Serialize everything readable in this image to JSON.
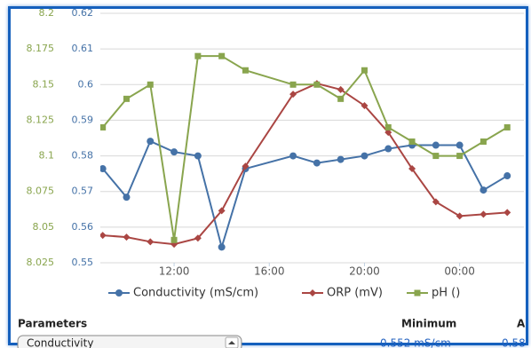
{
  "chart_data": {
    "type": "line",
    "xlim": [
      8.9,
      26.7
    ],
    "xticks": [
      {
        "value": 12,
        "label": "12:00"
      },
      {
        "value": 16,
        "label": "16:00"
      },
      {
        "value": 20,
        "label": "20:00"
      },
      {
        "value": 24,
        "label": "00:00"
      }
    ],
    "ylim": [
      0.55,
      0.62
    ],
    "yticks": [
      0.55,
      0.56,
      0.57,
      0.58,
      0.59,
      0.6,
      0.61,
      0.62
    ],
    "y2lim": [
      8.025,
      8.2
    ],
    "y2ticks": [
      8.025,
      8.05,
      8.075,
      8.1,
      8.125,
      8.15,
      8.175,
      8.2
    ],
    "grid": true,
    "series": [
      {
        "name": "Conductivity (mS/cm)",
        "color": "#4572a7",
        "marker": "circle",
        "x": [
          9,
          10,
          11,
          12,
          13,
          14,
          15,
          17,
          18,
          19,
          20,
          21,
          22,
          23,
          24,
          25,
          26
        ],
        "values": [
          0.5764,
          0.5684,
          0.5841,
          0.5811,
          0.58,
          0.5544,
          0.5764,
          0.58,
          0.578,
          0.579,
          0.58,
          0.582,
          0.583,
          0.583,
          0.583,
          0.5704,
          0.5744
        ]
      },
      {
        "name": "ORP (mV)",
        "color": "#aa4643",
        "marker": "diamond",
        "x": [
          9,
          10,
          11,
          12,
          13,
          14,
          15,
          17,
          18,
          19,
          20,
          21,
          22,
          23,
          24,
          25,
          26
        ],
        "values": [
          0.5577,
          0.5572,
          0.5559,
          0.5552,
          0.5569,
          0.5646,
          0.5771,
          0.5973,
          0.6003,
          0.5986,
          0.5941,
          0.5866,
          0.5764,
          0.5671,
          0.5631,
          0.5636,
          0.5641
        ]
      },
      {
        "name": "pH ()",
        "color": "#89a54e",
        "marker": "square",
        "axis": "y2",
        "x": [
          9,
          10,
          11,
          12,
          13,
          14,
          15,
          17,
          18,
          19,
          20,
          21,
          22,
          23,
          24,
          25,
          26
        ],
        "values": [
          8.12,
          8.14,
          8.15,
          8.041,
          8.17,
          8.17,
          8.16,
          8.15,
          8.15,
          8.14,
          8.16,
          8.12,
          8.11,
          8.1,
          8.1,
          8.11,
          8.12
        ]
      }
    ]
  },
  "table": {
    "headers": [
      "Parameters",
      "Minimum",
      "A"
    ],
    "rows": [
      [
        "Conductivity",
        "0.552 mS/cm",
        "0.58"
      ]
    ]
  }
}
